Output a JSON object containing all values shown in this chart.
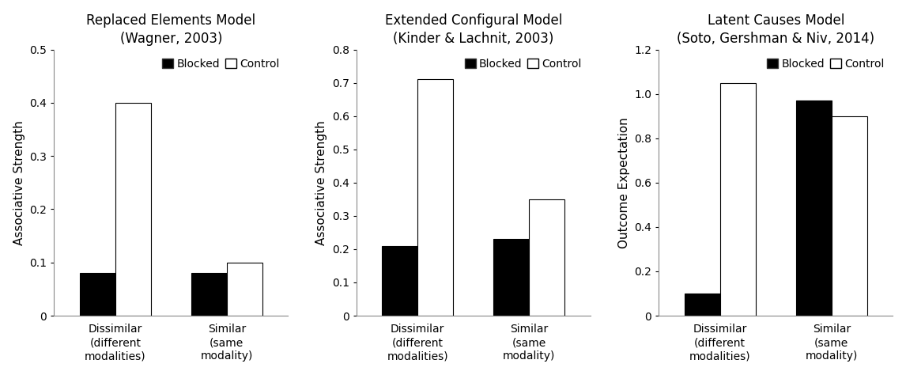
{
  "charts": [
    {
      "title": "Replaced Elements Model\n(Wagner, 2003)",
      "ylabel": "Associative Strength",
      "ylim": [
        0,
        0.5
      ],
      "yticks": [
        0,
        0.1,
        0.2,
        0.3,
        0.4,
        0.5
      ],
      "categories": [
        "Dissimilar\n(different\nmodalities)",
        "Similar\n(same\nmodality)"
      ],
      "blocked": [
        0.08,
        0.08
      ],
      "control": [
        0.4,
        0.1
      ]
    },
    {
      "title": "Extended Configural Model\n(Kinder & Lachnit, 2003)",
      "ylabel": "Associative Strength",
      "ylim": [
        0,
        0.8
      ],
      "yticks": [
        0,
        0.1,
        0.2,
        0.3,
        0.4,
        0.5,
        0.6,
        0.7,
        0.8
      ],
      "categories": [
        "Dissimilar\n(different\nmodalities)",
        "Similar\n(same\nmodality)"
      ],
      "blocked": [
        0.21,
        0.23
      ],
      "control": [
        0.71,
        0.35
      ]
    },
    {
      "title": "Latent Causes Model\n(Soto, Gershman & Niv, 2014)",
      "ylabel": "Outcome Expectation",
      "ylim": [
        0,
        1.2
      ],
      "yticks": [
        0,
        0.2,
        0.4,
        0.6,
        0.8,
        1.0,
        1.2
      ],
      "categories": [
        "Dissimilar\n(different\nmodalities)",
        "Similar\n(same\nmodality)"
      ],
      "blocked": [
        0.1,
        0.97
      ],
      "control": [
        1.05,
        0.9
      ]
    }
  ],
  "blocked_color": "#000000",
  "control_color": "#ffffff",
  "control_edgecolor": "#000000",
  "bar_width": 0.32,
  "legend_labels": [
    "Blocked",
    "Control"
  ],
  "title_fontsize": 12,
  "label_fontsize": 11,
  "tick_fontsize": 10,
  "legend_fontsize": 10
}
